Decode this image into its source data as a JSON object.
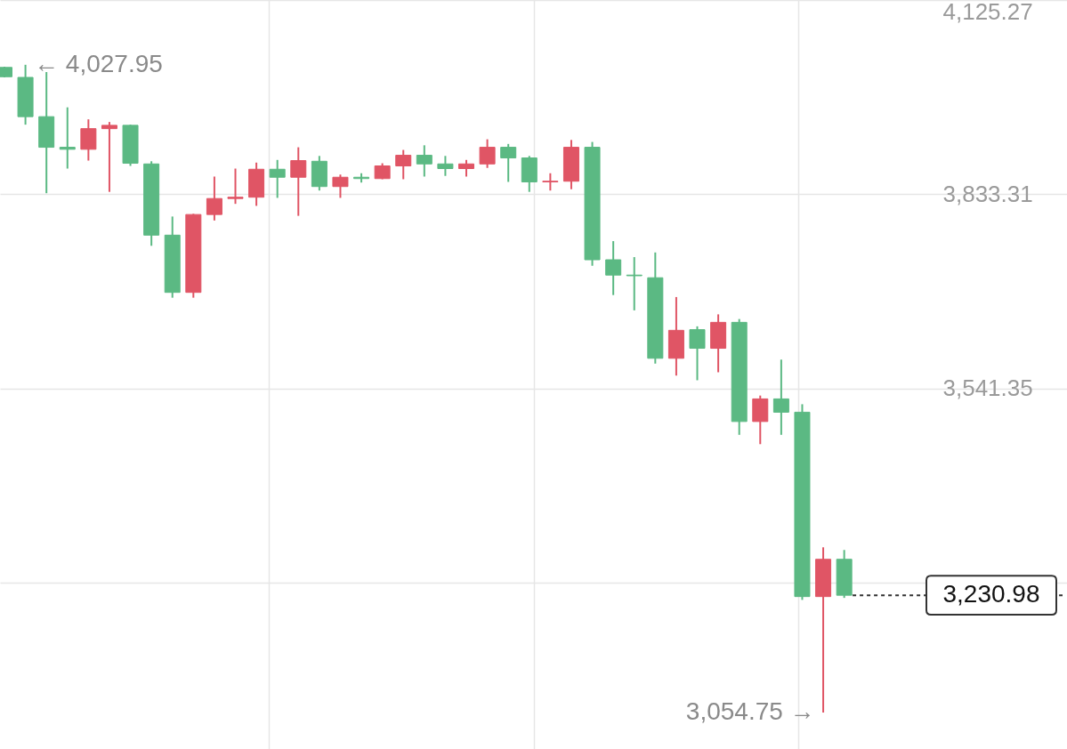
{
  "chart_data": {
    "type": "candlestick",
    "categories": [
      null,
      null,
      null,
      null,
      null,
      null,
      null,
      null,
      null,
      null,
      null,
      null,
      null,
      null,
      null,
      null,
      null,
      null,
      null,
      null,
      null,
      null,
      null,
      null,
      null,
      null,
      null,
      null,
      null,
      null,
      null,
      null,
      null,
      null,
      null,
      null,
      null,
      null,
      null,
      null,
      null
    ],
    "ohlc": [
      [
        4024,
        4025,
        4009,
        4010
      ],
      [
        4009,
        4027.95,
        3938,
        3950
      ],
      [
        3950,
        4017,
        3835,
        3904
      ],
      [
        3904,
        3964,
        3872,
        3901
      ],
      [
        3901,
        3946,
        3884,
        3932
      ],
      [
        3932,
        3942,
        3837,
        3937
      ],
      [
        3937,
        3938,
        3876,
        3880
      ],
      [
        3879,
        3883,
        3756,
        3772
      ],
      [
        3772,
        3800,
        3678,
        3686
      ],
      [
        3686,
        3804,
        3678,
        3803
      ],
      [
        3803,
        3860,
        3794,
        3827
      ],
      [
        3827,
        3872,
        3819,
        3829
      ],
      [
        3829,
        3881,
        3816,
        3871
      ],
      [
        3871,
        3885,
        3828,
        3859
      ],
      [
        3859,
        3904,
        3801,
        3884
      ],
      [
        3883,
        3891,
        3839,
        3845
      ],
      [
        3845,
        3863,
        3828,
        3859
      ],
      [
        3859,
        3865,
        3851,
        3857
      ],
      [
        3857,
        3880,
        3856,
        3876
      ],
      [
        3876,
        3900,
        3856,
        3892
      ],
      [
        3892,
        3907,
        3860,
        3879
      ],
      [
        3879,
        3891,
        3861,
        3872
      ],
      [
        3872,
        3885,
        3860,
        3879
      ],
      [
        3879,
        3916,
        3873,
        3904
      ],
      [
        3904,
        3909,
        3852,
        3888
      ],
      [
        3888,
        3891,
        3837,
        3852
      ],
      [
        3852,
        3865,
        3839,
        3853
      ],
      [
        3853,
        3915,
        3841,
        3904
      ],
      [
        3904,
        3912,
        3726,
        3735
      ],
      [
        3735,
        3763,
        3682,
        3712
      ],
      [
        3712,
        3739,
        3659,
        3711
      ],
      [
        3708,
        3746,
        3579,
        3587
      ],
      [
        3587,
        3679,
        3561,
        3629
      ],
      [
        3630,
        3635,
        3554,
        3602
      ],
      [
        3602,
        3653,
        3566,
        3641
      ],
      [
        3641,
        3646,
        3472,
        3492
      ],
      [
        3492,
        3531,
        3458,
        3526
      ],
      [
        3526,
        3585,
        3472,
        3506
      ],
      [
        3506,
        3518,
        3224,
        3229
      ],
      [
        3229,
        3303,
        3054.75,
        3285
      ],
      [
        3285,
        3299,
        3227,
        3230.98
      ]
    ],
    "colors": [
      "#5bb983",
      "#5bb983",
      "#5bb983",
      "#5bb983",
      "#e05565",
      "#e05565",
      "#5bb983",
      "#5bb983",
      "#5bb983",
      "#e05565",
      "#e05565",
      "#e05565",
      "#e05565",
      "#5bb983",
      "#e05565",
      "#5bb983",
      "#e05565",
      "#5bb983",
      "#e05565",
      "#e05565",
      "#5bb983",
      "#5bb983",
      "#e05565",
      "#e05565",
      "#5bb983",
      "#5bb983",
      "#e05565",
      "#e05565",
      "#5bb983",
      "#5bb983",
      "#5bb983",
      "#5bb983",
      "#e05565",
      "#5bb983",
      "#e05565",
      "#5bb983",
      "#e05565",
      "#5bb983",
      "#5bb983",
      "#e05565",
      "#5bb983"
    ],
    "ylim": [
      3000,
      4125.27
    ],
    "yticks": [
      {
        "value": 3249.39,
        "label": null
      },
      {
        "value": 3541.35,
        "label": "3,541.35"
      },
      {
        "value": 3833.31,
        "label": "3,833.31"
      },
      {
        "value": 4125.27,
        "label": "4,125.27"
      }
    ],
    "grid": true,
    "tick_labels": "y",
    "ref_lines": [
      {
        "axis": "y",
        "value": 3230.98,
        "label": "3,230.98",
        "color": "#333333",
        "line_style": "dotted"
      }
    ],
    "annotations": [
      "← 4,027.95",
      "3,054.75 →"
    ]
  }
}
